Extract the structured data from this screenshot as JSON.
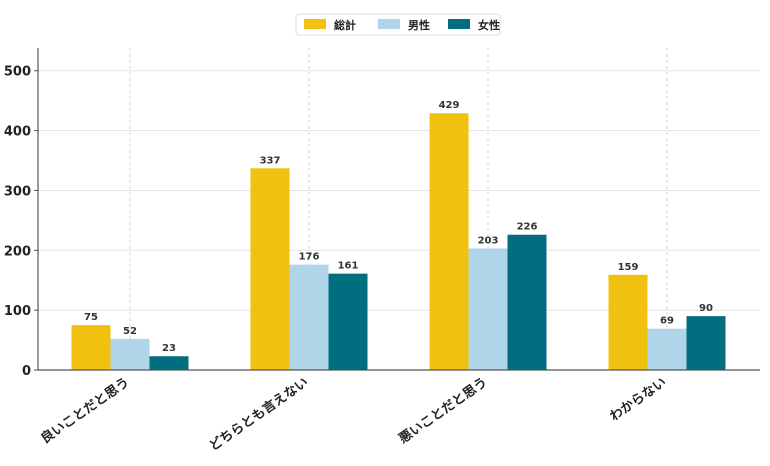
{
  "chart_data": {
    "type": "bar",
    "title": "",
    "xlabel": "",
    "ylabel": "",
    "categories": [
      "良いことだと思う",
      "どちらとも言えない",
      "悪いことだと思う",
      "わからない"
    ],
    "series": [
      {
        "name": "総計",
        "color": "#f0c20f",
        "values": [
          75,
          337,
          429,
          159
        ]
      },
      {
        "name": "男性",
        "color": "#afd5e8",
        "values": [
          52,
          176,
          203,
          69
        ]
      },
      {
        "name": "女性",
        "color": "#006e7f",
        "values": [
          23,
          161,
          226,
          90
        ]
      }
    ],
    "ylim": [
      0,
      538
    ],
    "yticks": [
      0,
      100,
      200,
      300,
      400,
      500
    ],
    "grid": true,
    "legend": "top-center",
    "data_labels": true
  }
}
